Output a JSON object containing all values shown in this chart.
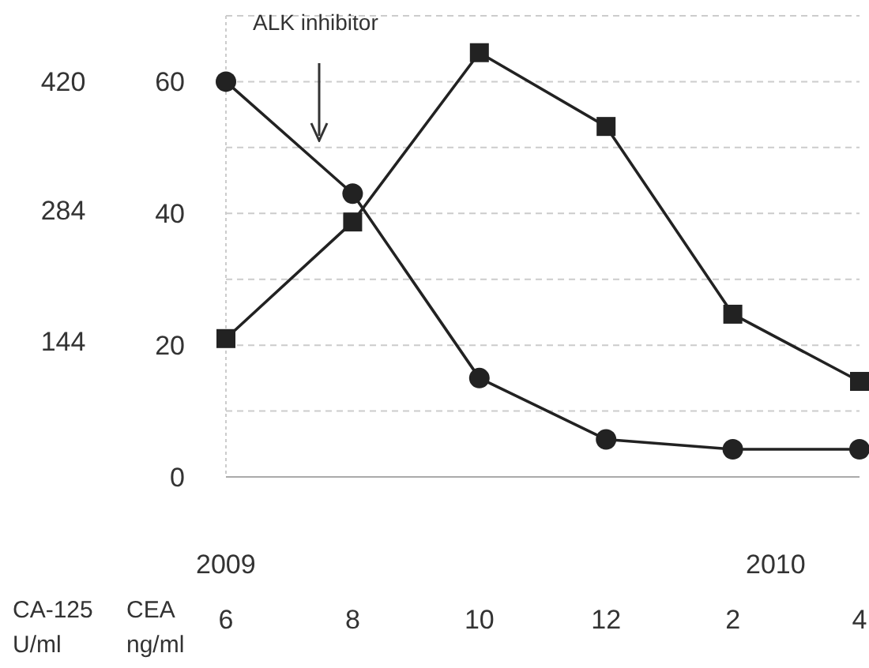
{
  "chart_data": {
    "type": "line",
    "categories": [
      "6",
      "8",
      "10",
      "12",
      "2",
      "4"
    ],
    "series": [
      {
        "color": "#222222",
        "marker": "circle",
        "values": [
          60,
          43,
          15,
          5.7,
          4.2,
          4.2
        ]
      },
      {
        "color": "#222222",
        "marker": "square",
        "values": [
          21,
          38.7,
          64.4,
          53.2,
          24.7,
          14.5
        ]
      }
    ],
    "ylabel": "CEA\nng/ml",
    "y2label": "CA-125\nU/ml",
    "ylim": [
      0,
      70
    ],
    "yticks": [
      0,
      {
        "value": 10,
        "label": null
      },
      20,
      {
        "value": 30,
        "label": null
      },
      40,
      {
        "value": 50,
        "label": null
      },
      60,
      {
        "value": 70,
        "label": null
      }
    ],
    "y2lim": [
      0,
      490
    ],
    "y2ticks": [
      144,
      284,
      420
    ],
    "annotations": [
      "ALK inhibitor",
      "2009",
      "2010"
    ],
    "grid": "y",
    "legend": false,
    "line_style": "solid"
  }
}
